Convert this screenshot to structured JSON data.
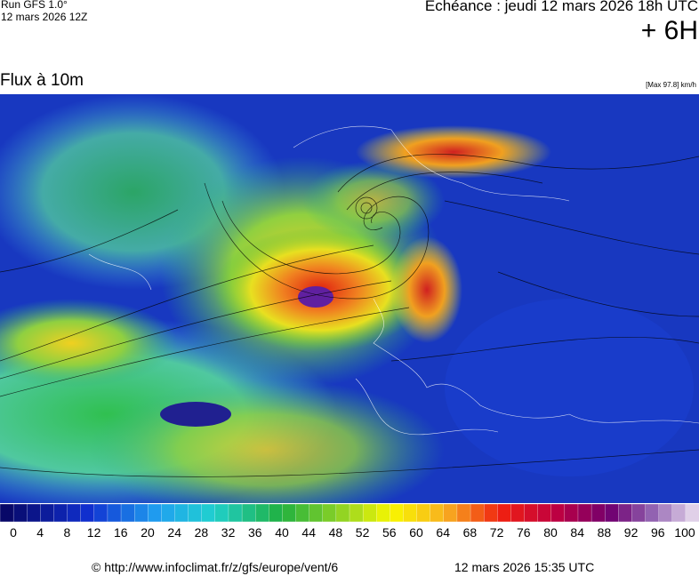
{
  "header": {
    "run": "Run GFS 1.0°",
    "run_date": "12 mars 2026 12Z",
    "valid": "Echéance : jeudi 12 mars 2026 18h UTC",
    "lead": "+ 6H",
    "field": "Flux à 10m",
    "max": "[Max 97.8] km/h"
  },
  "colorbar": {
    "labels": [
      0,
      4,
      8,
      12,
      16,
      20,
      24,
      28,
      32,
      36,
      40,
      44,
      48,
      52,
      56,
      60,
      64,
      68,
      72,
      76,
      80,
      84,
      88,
      92,
      96,
      100
    ]
  },
  "footer": {
    "url": "© http://www.infoclimat.fr/z/gfs/europe/vent/6",
    "timestamp": "12 mars 2026 15:35 UTC"
  }
}
